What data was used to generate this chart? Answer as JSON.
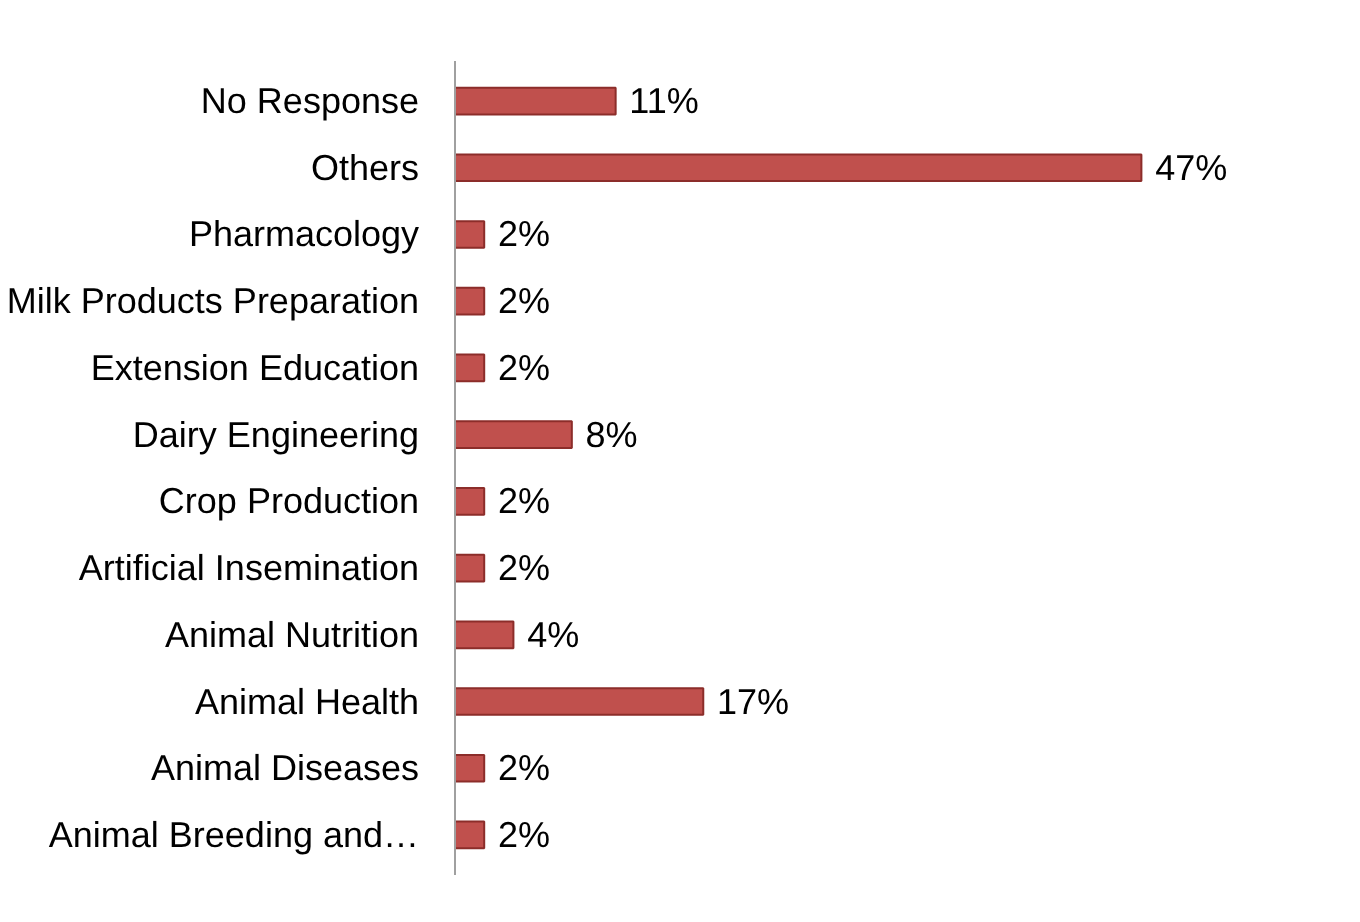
{
  "chart_data": {
    "type": "bar",
    "orientation": "horizontal",
    "categories": [
      "No Response",
      "Others",
      "Pharmacology",
      "Milk Products Preparation",
      "Extension Education",
      "Dairy Engineering",
      "Crop Production",
      "Artificial Insemination",
      "Animal Nutrition",
      "Animal Health",
      "Animal Diseases",
      "Animal Breeding and…"
    ],
    "values": [
      11,
      47,
      2,
      2,
      2,
      8,
      2,
      2,
      4,
      17,
      2,
      2
    ],
    "color": "#c0504d",
    "value_labels": [
      "11%",
      "47%",
      "2%",
      "2%",
      "2%",
      "8%",
      "2%",
      "2%",
      "4%",
      "17%",
      "2%",
      "2%"
    ],
    "tick_labels": "y",
    "grid": false
  }
}
